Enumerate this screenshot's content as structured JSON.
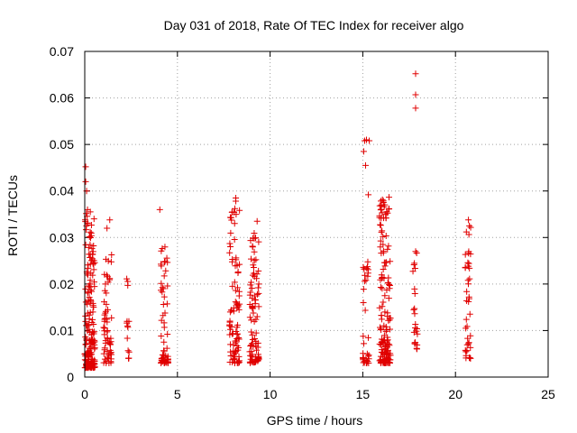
{
  "chart_data": {
    "type": "scatter",
    "title": "Day 031 of 2018, Rate Of TEC Index for receiver algo",
    "xlabel": "GPS time / hours",
    "ylabel": "ROTI / TECUs",
    "xlim": [
      0,
      25
    ],
    "ylim": [
      0,
      0.07
    ],
    "x_ticks": [
      "0",
      "5",
      "10",
      "15",
      "20",
      "25"
    ],
    "y_ticks": [
      "0",
      "0.01",
      "0.02",
      "0.03",
      "0.04",
      "0.05",
      "0.06",
      "0.07"
    ],
    "grid": true,
    "marker": "+",
    "color": "#e00000",
    "clusters": [
      {
        "x_range": [
          0.0,
          0.2
        ],
        "y_range": [
          0.002,
          0.036
        ],
        "count": 60
      },
      {
        "x_range": [
          0.2,
          0.55
        ],
        "y_range": [
          0.002,
          0.033
        ],
        "count": 120
      },
      {
        "x_range": [
          1.0,
          1.45
        ],
        "y_range": [
          0.003,
          0.027
        ],
        "count": 60
      },
      {
        "x_range": [
          2.25,
          2.4
        ],
        "y_range": [
          0.004,
          0.024
        ],
        "count": 14
      },
      {
        "x_range": [
          4.1,
          4.5
        ],
        "y_range": [
          0.003,
          0.029
        ],
        "count": 55
      },
      {
        "x_range": [
          7.8,
          8.35
        ],
        "y_range": [
          0.003,
          0.038
        ],
        "count": 90
      },
      {
        "x_range": [
          8.9,
          9.4
        ],
        "y_range": [
          0.003,
          0.033
        ],
        "count": 90
      },
      {
        "x_range": [
          15.0,
          15.35
        ],
        "y_range": [
          0.003,
          0.026
        ],
        "count": 35
      },
      {
        "x_range": [
          15.9,
          16.5
        ],
        "y_range": [
          0.003,
          0.039
        ],
        "count": 150
      },
      {
        "x_range": [
          17.7,
          17.95
        ],
        "y_range": [
          0.006,
          0.027
        ],
        "count": 22
      },
      {
        "x_range": [
          20.5,
          20.85
        ],
        "y_range": [
          0.004,
          0.034
        ],
        "count": 40
      }
    ],
    "points": [
      [
        0.05,
        0.0452
      ],
      [
        0.05,
        0.042
      ],
      [
        0.1,
        0.04
      ],
      [
        0.15,
        0.036
      ],
      [
        0.3,
        0.0355
      ],
      [
        0.5,
        0.034
      ],
      [
        1.2,
        0.032
      ],
      [
        1.35,
        0.0338
      ],
      [
        4.05,
        0.036
      ],
      [
        8.15,
        0.0385
      ],
      [
        8.15,
        0.0378
      ],
      [
        8.1,
        0.0362
      ],
      [
        9.3,
        0.0335
      ],
      [
        15.1,
        0.0508
      ],
      [
        15.2,
        0.051
      ],
      [
        15.35,
        0.0508
      ],
      [
        15.05,
        0.0485
      ],
      [
        15.15,
        0.0455
      ],
      [
        15.3,
        0.0392
      ],
      [
        17.85,
        0.0652
      ],
      [
        17.85,
        0.0607
      ],
      [
        17.85,
        0.0578
      ],
      [
        17.85,
        0.027
      ],
      [
        20.7,
        0.0338
      ],
      [
        20.75,
        0.0325
      ]
    ]
  }
}
